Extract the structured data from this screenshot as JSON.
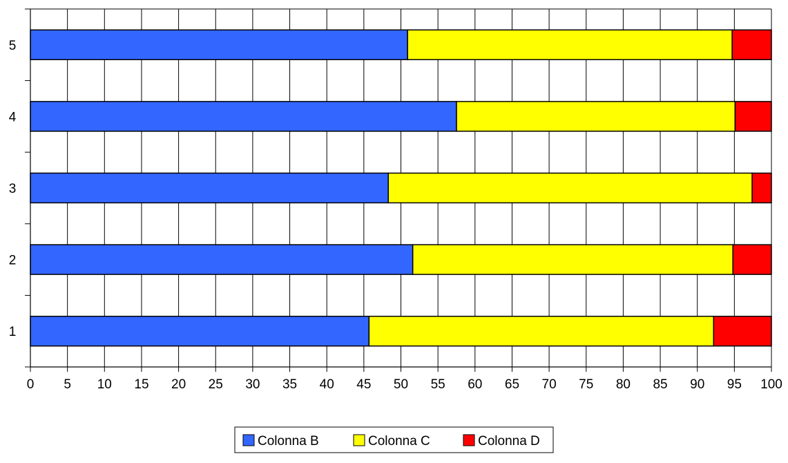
{
  "chart_data": {
    "type": "bar",
    "orientation": "horizontal",
    "stacked": true,
    "categories": [
      "1",
      "2",
      "3",
      "4",
      "5"
    ],
    "series": [
      {
        "name": "Colonna B",
        "color": "#3366ff",
        "values": [
          45.7,
          51.6,
          48.3,
          57.5,
          50.9
        ]
      },
      {
        "name": "Colonna C",
        "color": "#ffff00",
        "values": [
          46.5,
          43.2,
          49.1,
          37.6,
          43.8
        ]
      },
      {
        "name": "Colonna D",
        "color": "#ff0000",
        "values": [
          7.8,
          5.2,
          2.6,
          4.9,
          5.3
        ]
      }
    ],
    "xlim": [
      0,
      100
    ],
    "xticks": [
      0,
      5,
      10,
      15,
      20,
      25,
      30,
      35,
      40,
      45,
      50,
      55,
      60,
      65,
      70,
      75,
      80,
      85,
      90,
      95,
      100
    ],
    "grid": true,
    "legend_position": "bottom"
  }
}
